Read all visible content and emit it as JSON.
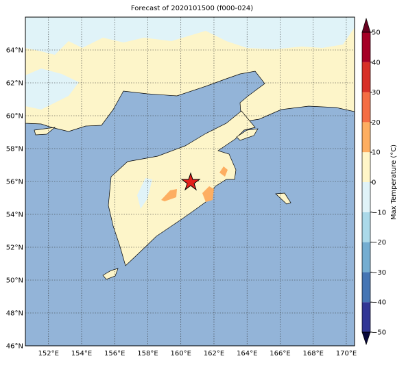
{
  "title": "Forecast of 2020101500 (f000-024)",
  "map": {
    "xlim": [
      150.6,
      170.5
    ],
    "ylim": [
      46,
      66
    ],
    "xticks": [
      {
        "value": 152,
        "label": "152°E"
      },
      {
        "value": 154,
        "label": "154°E"
      },
      {
        "value": 156,
        "label": "156°E"
      },
      {
        "value": 158,
        "label": "158°E"
      },
      {
        "value": 160,
        "label": "160°E"
      },
      {
        "value": 162,
        "label": "162°E"
      },
      {
        "value": 164,
        "label": "164°E"
      },
      {
        "value": 166,
        "label": "166°E"
      },
      {
        "value": 168,
        "label": "168°E"
      },
      {
        "value": 170,
        "label": "170°E"
      }
    ],
    "yticks": [
      {
        "value": 46,
        "label": "46°N"
      },
      {
        "value": 48,
        "label": "48°N"
      },
      {
        "value": 50,
        "label": "50°N"
      },
      {
        "value": 52,
        "label": "52°N"
      },
      {
        "value": 54,
        "label": "54°N"
      },
      {
        "value": 56,
        "label": "56°N"
      },
      {
        "value": 58,
        "label": "58°N"
      },
      {
        "value": 60,
        "label": "60°N"
      },
      {
        "value": 62,
        "label": "62°N"
      },
      {
        "value": 64,
        "label": "64°N"
      }
    ]
  },
  "colorbar": {
    "label": "Max Temperature (°C)",
    "ticks": [
      {
        "value": -50,
        "label": "−50"
      },
      {
        "value": -40,
        "label": "−40"
      },
      {
        "value": -30,
        "label": "−30"
      },
      {
        "value": -20,
        "label": "−20"
      },
      {
        "value": -10,
        "label": "−10"
      },
      0,
      10,
      20,
      30,
      40,
      50
    ],
    "colors": [
      "#313695",
      "#4575b4",
      "#74add1",
      "#abd9e9",
      "#e0f3f8",
      "#fff6c8",
      "#fdae61",
      "#f46d43",
      "#d73027",
      "#a50026"
    ],
    "extend_colors": [
      "#08083a",
      "#67001f"
    ]
  }
}
